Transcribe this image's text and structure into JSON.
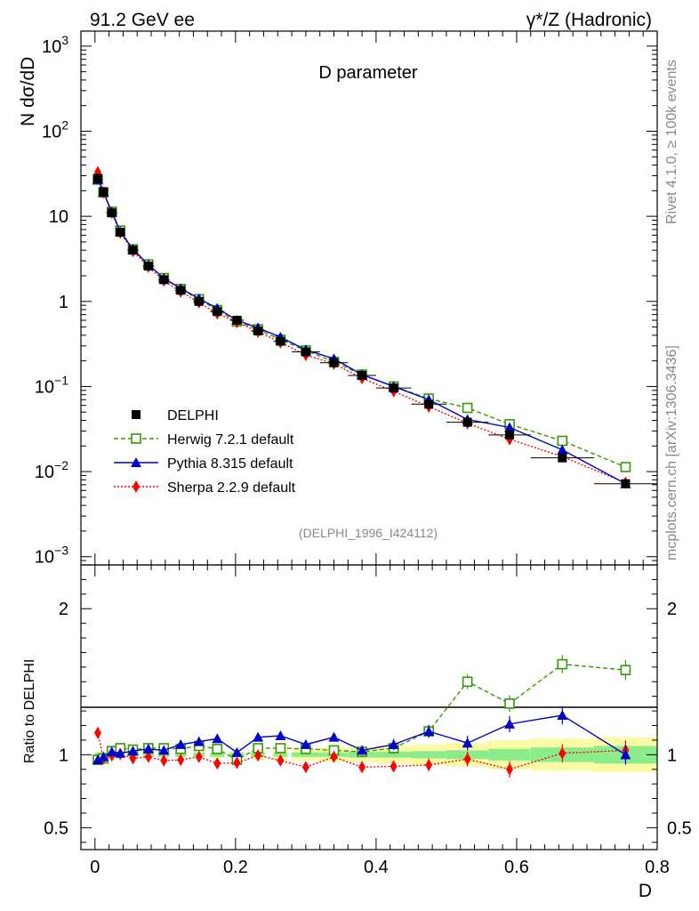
{
  "header": {
    "left": "91.2 GeV ee",
    "right_prefix": "γ*/Z",
    "right_suffix": " (Hadronic)"
  },
  "side": {
    "rivet": "Rivet 4.1.0, ≥ 100k events",
    "mcplots": "mcplots.cern.ch [arXiv:1306.3436]"
  },
  "chart_data": {
    "type": "line",
    "title": "D parameter",
    "analysis_id": "(DELPHI_1996_I424112)",
    "xlabel": "D",
    "ylabel_main": "N  dσ/dD",
    "ylabel_ratio": "Ratio to DELPHI",
    "xlim": [
      -0.02,
      0.8
    ],
    "ylim_main": [
      0.0008,
      1500
    ],
    "yscale_main": "log",
    "ylim_ratio": [
      0.35,
      2.3
    ],
    "x_ticks": [
      "0",
      "0.2",
      "0.4",
      "0.6",
      "0.8"
    ],
    "y_ticks_main": [
      {
        "base": "10",
        "exp": "3"
      },
      {
        "base": "10",
        "exp": "2"
      },
      {
        "base": "10",
        "exp": ""
      },
      {
        "base": "1",
        "exp": ""
      },
      {
        "base": "10",
        "exp": "−1"
      },
      {
        "base": "10",
        "exp": "−2"
      },
      {
        "base": "10",
        "exp": "−3"
      }
    ],
    "y_ticks_ratio": [
      "2",
      "1",
      "0.5"
    ],
    "legend_position": "center-left",
    "x": [
      0.004,
      0.012,
      0.024,
      0.036,
      0.054,
      0.076,
      0.098,
      0.122,
      0.148,
      0.174,
      0.202,
      0.232,
      0.264,
      0.3,
      0.34,
      0.38,
      0.425,
      0.475,
      0.53,
      0.59,
      0.665,
      0.755
    ],
    "xerr": [
      0.004,
      0.004,
      0.008,
      0.004,
      0.008,
      0.008,
      0.008,
      0.008,
      0.008,
      0.01,
      0.01,
      0.01,
      0.01,
      0.02,
      0.02,
      0.02,
      0.025,
      0.025,
      0.03,
      0.03,
      0.045,
      0.045
    ],
    "series": [
      {
        "name": "DELPHI",
        "color": "#000000",
        "marker": "square-filled",
        "values": [
          28,
          19.5,
          11,
          6.5,
          4.0,
          2.6,
          1.8,
          1.35,
          1.0,
          0.76,
          0.6,
          0.45,
          0.34,
          0.255,
          0.19,
          0.135,
          0.096,
          0.062,
          0.038,
          0.027,
          0.0145,
          0.0072
        ]
      },
      {
        "name": "Herwig 7.2.1 default",
        "color": "#339900",
        "marker": "square-open",
        "line": "dashed",
        "values": [
          27,
          19.0,
          11.3,
          6.8,
          4.1,
          2.72,
          1.88,
          1.4,
          1.06,
          0.79,
          0.58,
          0.47,
          0.355,
          0.265,
          0.195,
          0.138,
          0.1,
          0.072,
          0.056,
          0.036,
          0.023,
          0.0113
        ],
        "ratio": [
          0.965,
          0.975,
          1.025,
          1.045,
          1.035,
          1.045,
          1.045,
          1.04,
          1.06,
          1.04,
          0.965,
          1.045,
          1.045,
          1.04,
          1.03,
          1.02,
          1.045,
          1.16,
          1.5,
          1.35,
          1.62,
          1.58
        ]
      },
      {
        "name": "Pythia 8.315 default",
        "color": "#0000cc",
        "marker": "triangle-filled",
        "line": "solid",
        "values": [
          27,
          19.2,
          11.2,
          6.6,
          4.1,
          2.7,
          1.87,
          1.42,
          1.08,
          0.83,
          0.6,
          0.49,
          0.38,
          0.27,
          0.212,
          0.138,
          0.1,
          0.07,
          0.041,
          0.033,
          0.018,
          0.0072
        ],
        "ratio": [
          0.965,
          0.985,
          1.02,
          1.01,
          1.025,
          1.04,
          1.03,
          1.07,
          1.09,
          1.11,
          1.015,
          1.12,
          1.13,
          1.07,
          1.12,
          1.03,
          1.07,
          1.16,
          1.08,
          1.21,
          1.27,
          1.0
        ]
      },
      {
        "name": "Sherpa 2.2.9 default",
        "color": "#ff0000",
        "marker": "diamond-filled",
        "line": "dotted",
        "values": [
          33,
          19.0,
          11.0,
          6.4,
          3.9,
          2.55,
          1.75,
          1.3,
          0.97,
          0.72,
          0.57,
          0.44,
          0.33,
          0.235,
          0.185,
          0.125,
          0.088,
          0.058,
          0.037,
          0.024,
          0.015,
          0.0074
        ],
        "ratio": [
          1.15,
          0.975,
          0.995,
          1.005,
          0.975,
          0.985,
          0.96,
          0.965,
          0.985,
          0.94,
          0.945,
          0.995,
          0.96,
          0.915,
          0.985,
          0.915,
          0.92,
          0.93,
          0.97,
          0.9,
          1.01,
          1.03
        ]
      }
    ],
    "uncertainty_band": {
      "inner_color": "#8bec8b",
      "outer_color": "#fbfba3",
      "inner": [
        0.015,
        0.015,
        0.015,
        0.015,
        0.015,
        0.015,
        0.015,
        0.015,
        0.015,
        0.015,
        0.015,
        0.015,
        0.015,
        0.015,
        0.015,
        0.02,
        0.02,
        0.025,
        0.03,
        0.04,
        0.05,
        0.06
      ],
      "outer": [
        0.02,
        0.02,
        0.02,
        0.02,
        0.02,
        0.02,
        0.02,
        0.02,
        0.02,
        0.025,
        0.03,
        0.035,
        0.04,
        0.04,
        0.05,
        0.05,
        0.06,
        0.07,
        0.08,
        0.1,
        0.11,
        0.12
      ]
    }
  }
}
